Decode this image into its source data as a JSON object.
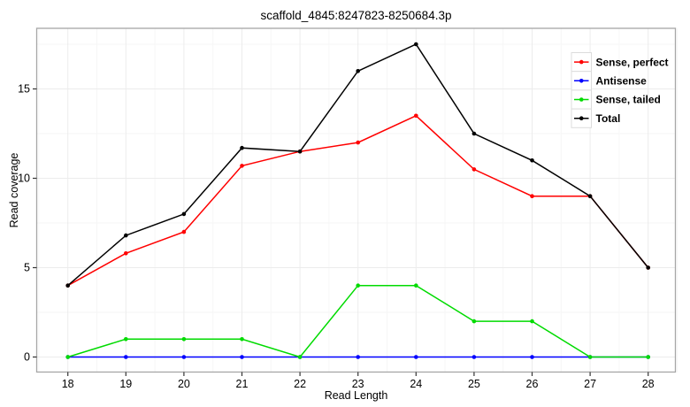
{
  "title": "scaffold_4845:8247823-8250684.3p",
  "axes": {
    "xlabel": "Read Length",
    "ylabel": "Read coverage"
  },
  "chart_data": {
    "type": "line",
    "title": "scaffold_4845:8247823-8250684.3p",
    "xlabel": "Read Length",
    "ylabel": "Read coverage",
    "x": [
      18,
      19,
      20,
      21,
      22,
      23,
      24,
      25,
      26,
      27,
      28
    ],
    "series": [
      {
        "name": "Sense, perfect",
        "color": "#FF0000",
        "values": [
          4,
          5.8,
          7,
          10.7,
          11.5,
          12,
          13.5,
          10.5,
          9,
          9,
          5
        ]
      },
      {
        "name": "Antisense",
        "color": "#0000FF",
        "values": [
          0,
          0,
          0,
          0,
          0,
          0,
          0,
          0,
          0,
          0,
          0
        ]
      },
      {
        "name": "Sense, tailed",
        "color": "#00DB00",
        "values": [
          0,
          1,
          1,
          1,
          0,
          4,
          4,
          2,
          2,
          0,
          0
        ]
      },
      {
        "name": "Total",
        "color": "#000000",
        "values": [
          4,
          6.8,
          8,
          11.7,
          11.5,
          16,
          17.5,
          12.5,
          11,
          9,
          5
        ]
      }
    ],
    "xticks": [
      18,
      19,
      20,
      21,
      22,
      23,
      24,
      25,
      26,
      27,
      28
    ],
    "yticks": [
      0,
      5,
      10,
      15
    ],
    "xlim": [
      17.45,
      28.55
    ],
    "ylim": [
      -0.85,
      18.45
    ],
    "grid": true,
    "legend_position": "top-right-inside",
    "style": {
      "panel_border": "#A6A6A6",
      "grid_major": "#ECECEC",
      "grid_minor": "#F6F6F6",
      "tick_color": "#333333",
      "legend_key_border": "#DCDCDC",
      "legend_key_fill": "#FFFFFF"
    }
  }
}
